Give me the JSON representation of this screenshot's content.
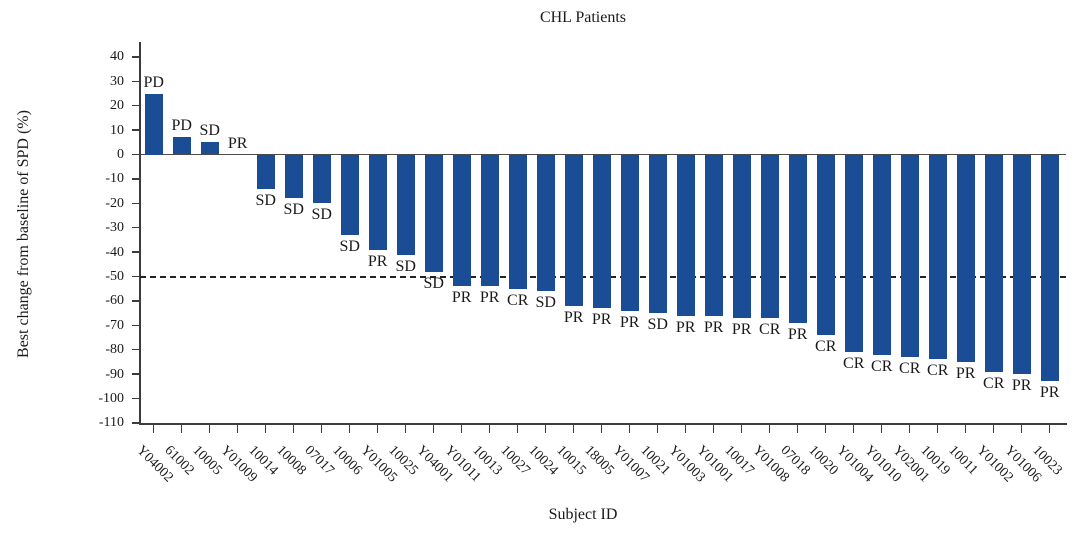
{
  "chart_data": {
    "type": "bar",
    "title": "CHL Patients",
    "xlabel": "Subject ID",
    "ylabel": "Best change from baseline of SPD (%)",
    "ylim": [
      -110,
      40
    ],
    "y_ticks": [
      40,
      30,
      20,
      10,
      0,
      -10,
      -20,
      -30,
      -40,
      -50,
      -60,
      -70,
      -80,
      -90,
      -100,
      -110
    ],
    "reference_line_y": -50,
    "grid": "off",
    "legend": "none",
    "bar_color": "#1b4c96",
    "points": [
      {
        "subject": "Y04002",
        "response": "PD",
        "value": 25
      },
      {
        "subject": "61002",
        "response": "PD",
        "value": 7
      },
      {
        "subject": "10005",
        "response": "SD",
        "value": 5
      },
      {
        "subject": "Y01009",
        "response": "PR",
        "value": 0
      },
      {
        "subject": "10014",
        "response": "SD",
        "value": -14
      },
      {
        "subject": "10008",
        "response": "SD",
        "value": -18
      },
      {
        "subject": "07017",
        "response": "SD",
        "value": -20
      },
      {
        "subject": "10006",
        "response": "SD",
        "value": -33
      },
      {
        "subject": "Y01005",
        "response": "PR",
        "value": -39
      },
      {
        "subject": "10025",
        "response": "SD",
        "value": -41
      },
      {
        "subject": "Y04001",
        "response": "SD",
        "value": -48
      },
      {
        "subject": "Y01011",
        "response": "PR",
        "value": -54
      },
      {
        "subject": "10013",
        "response": "PR",
        "value": -54
      },
      {
        "subject": "10027",
        "response": "CR",
        "value": -55
      },
      {
        "subject": "10024",
        "response": "SD",
        "value": -56
      },
      {
        "subject": "10015",
        "response": "PR",
        "value": -62
      },
      {
        "subject": "18005",
        "response": "PR",
        "value": -63
      },
      {
        "subject": "Y01007",
        "response": "PR",
        "value": -64
      },
      {
        "subject": "10021",
        "response": "SD",
        "value": -65
      },
      {
        "subject": "Y01003",
        "response": "PR",
        "value": -66
      },
      {
        "subject": "Y01001",
        "response": "PR",
        "value": -66
      },
      {
        "subject": "10017",
        "response": "PR",
        "value": -67
      },
      {
        "subject": "Y01008",
        "response": "CR",
        "value": -67
      },
      {
        "subject": "07018",
        "response": "PR",
        "value": -69
      },
      {
        "subject": "10020",
        "response": "CR",
        "value": -74
      },
      {
        "subject": "Y01004",
        "response": "CR",
        "value": -81
      },
      {
        "subject": "Y01010",
        "response": "CR",
        "value": -82
      },
      {
        "subject": "Y02001",
        "response": "CR",
        "value": -83
      },
      {
        "subject": "10019",
        "response": "CR",
        "value": -84
      },
      {
        "subject": "10011",
        "response": "PR",
        "value": -85
      },
      {
        "subject": "Y01002",
        "response": "CR",
        "value": -89
      },
      {
        "subject": "Y01006",
        "response": "PR",
        "value": -90
      },
      {
        "subject": "10023",
        "response": "PR",
        "value": -93
      }
    ]
  }
}
